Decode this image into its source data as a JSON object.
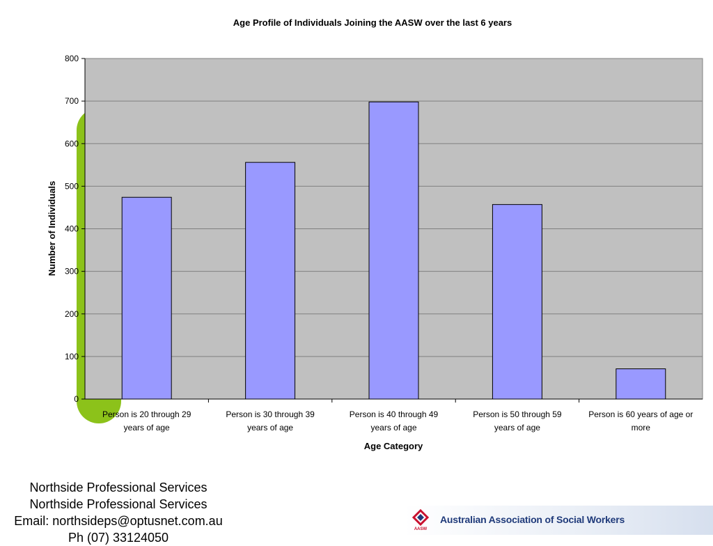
{
  "chart_data": {
    "type": "bar",
    "title": "Age Profile of Individuals Joining the AASW over the last 6 years",
    "xlabel": "Age Category",
    "ylabel": "Number of Individuals",
    "ylim": [
      0,
      800
    ],
    "yticks": [
      0,
      100,
      200,
      300,
      400,
      500,
      600,
      700,
      800
    ],
    "grid": true,
    "legend": "none",
    "categories": [
      [
        "Person is 20 through 29",
        "years of age"
      ],
      [
        "Person is 30 through 39",
        "years of age"
      ],
      [
        "Person is 40 through 49",
        "years of age"
      ],
      [
        "Person is 50 through 59",
        "years of age"
      ],
      [
        "Person is 60 years of age or",
        "more"
      ]
    ],
    "values": [
      474,
      556,
      698,
      457,
      71
    ],
    "colors": {
      "bar": "#9999ff",
      "plot_bg": "#c0c0c0",
      "grid": "#808080"
    }
  },
  "footer": {
    "line1": "Northside Professional Services",
    "line2": "Northside Professional Services",
    "line3": "Email: northsideps@optusnet.com.au",
    "line4": "Ph (07) 33124050"
  },
  "banner": {
    "org_name": "Australian Association of Social Workers",
    "logo_text": "AASW"
  },
  "colors": {
    "accent_green": "#8cc21a",
    "banner_text": "#1f3a7a",
    "logo_red": "#c8102e"
  }
}
